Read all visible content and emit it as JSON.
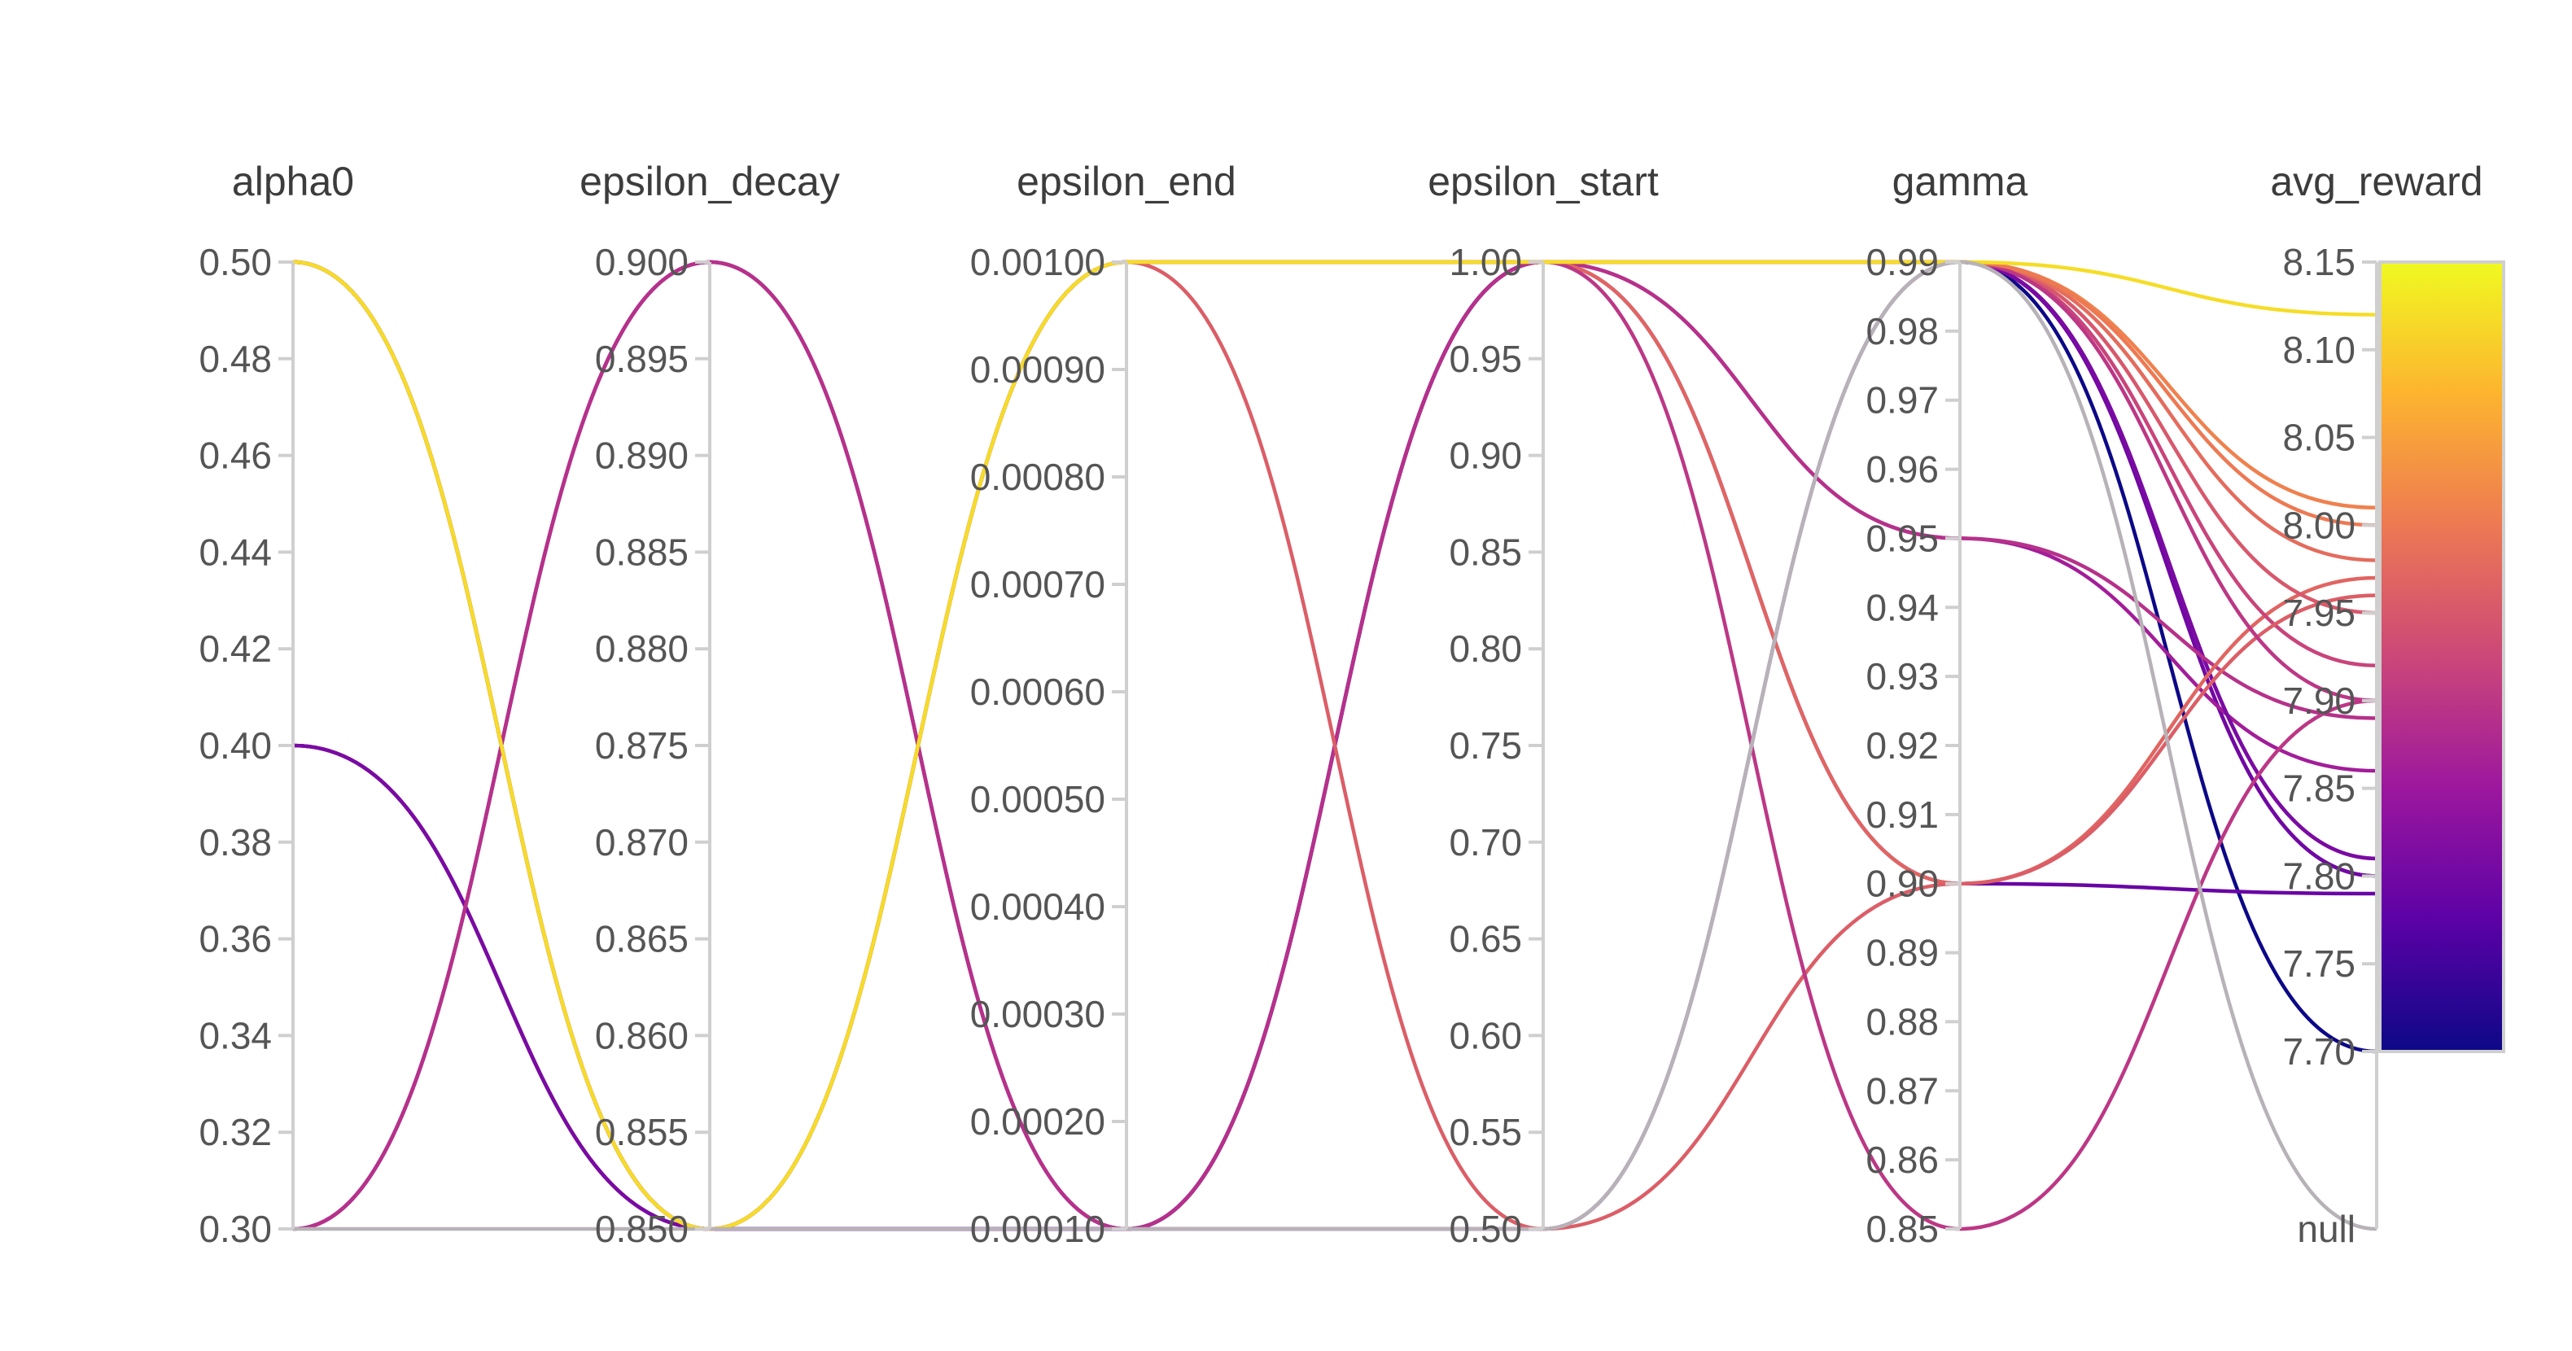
{
  "chart_data": {
    "type": "parallel_coordinates",
    "axes": [
      {
        "name": "alpha0",
        "min": 0.3,
        "max": 0.5,
        "ticks": [
          "0.30",
          "0.32",
          "0.34",
          "0.36",
          "0.38",
          "0.40",
          "0.42",
          "0.44",
          "0.46",
          "0.48",
          "0.50"
        ]
      },
      {
        "name": "epsilon_decay",
        "min": 0.85,
        "max": 0.9,
        "ticks": [
          "0.850",
          "0.855",
          "0.860",
          "0.865",
          "0.870",
          "0.875",
          "0.880",
          "0.885",
          "0.890",
          "0.895",
          "0.900"
        ]
      },
      {
        "name": "epsilon_end",
        "min": 0.0001,
        "max": 0.001,
        "ticks": [
          "0.00010",
          "0.00020",
          "0.00030",
          "0.00040",
          "0.00050",
          "0.00060",
          "0.00070",
          "0.00080",
          "0.00090",
          "0.00100"
        ]
      },
      {
        "name": "epsilon_start",
        "min": 0.5,
        "max": 1.0,
        "ticks": [
          "0.50",
          "0.55",
          "0.60",
          "0.65",
          "0.70",
          "0.75",
          "0.80",
          "0.85",
          "0.90",
          "0.95",
          "1.00"
        ]
      },
      {
        "name": "gamma",
        "min": 0.85,
        "max": 0.99,
        "ticks": [
          "0.85",
          "0.86",
          "0.87",
          "0.88",
          "0.89",
          "0.90",
          "0.91",
          "0.92",
          "0.93",
          "0.94",
          "0.95",
          "0.96",
          "0.97",
          "0.98",
          "0.99"
        ]
      },
      {
        "name": "avg_reward",
        "min": 7.7,
        "max": 8.15,
        "ticks": [
          "7.70",
          "7.75",
          "7.80",
          "7.85",
          "7.90",
          "7.95",
          "8.00",
          "8.05",
          "8.10",
          "8.15"
        ],
        "null_label": "null"
      }
    ],
    "colorbar": {
      "min": 7.7,
      "max": 8.15,
      "colors": [
        "#0d0887",
        "#5c01a6",
        "#9c179e",
        "#cc4778",
        "#ed7953",
        "#fdb42f",
        "#f0f921"
      ]
    },
    "series": [
      {
        "values": [
          0.5,
          0.85,
          0.0001,
          1.0,
          0.99,
          7.7
        ]
      },
      {
        "values": [
          0.5,
          0.85,
          0.0001,
          1.0,
          0.99,
          7.8
        ]
      },
      {
        "values": [
          0.4,
          0.85,
          0.0001,
          1.0,
          0.99,
          7.81
        ]
      },
      {
        "values": [
          0.3,
          0.9,
          0.0001,
          1.0,
          0.99,
          7.8
        ]
      },
      {
        "values": [
          0.3,
          0.9,
          0.0001,
          1.0,
          0.95,
          7.86
        ]
      },
      {
        "values": [
          0.4,
          0.85,
          0.0001,
          1.0,
          0.9,
          7.79
        ]
      },
      {
        "values": [
          0.4,
          0.85,
          0.0001,
          0.5,
          0.99,
          7.81
        ]
      },
      {
        "values": [
          0.3,
          0.9,
          0.0001,
          1.0,
          0.95,
          7.89
        ]
      },
      {
        "values": [
          0.5,
          0.85,
          0.001,
          1.0,
          0.9,
          7.97
        ]
      },
      {
        "values": [
          0.5,
          0.85,
          0.001,
          1.0,
          0.99,
          7.92
        ]
      },
      {
        "values": [
          0.5,
          0.85,
          0.001,
          1.0,
          0.99,
          7.95
        ]
      },
      {
        "values": [
          0.5,
          0.85,
          0.001,
          1.0,
          0.99,
          8.01
        ]
      },
      {
        "values": [
          0.5,
          0.85,
          0.001,
          1.0,
          0.99,
          7.98
        ]
      },
      {
        "values": [
          0.5,
          0.85,
          0.001,
          0.5,
          0.9,
          7.96
        ]
      },
      {
        "values": [
          0.5,
          0.85,
          0.001,
          1.0,
          0.85,
          7.9
        ]
      },
      {
        "values": [
          0.5,
          0.85,
          0.001,
          1.0,
          0.99,
          7.9
        ]
      },
      {
        "values": [
          0.5,
          0.85,
          0.001,
          1.0,
          0.99,
          8.0
        ]
      },
      {
        "values": [
          0.5,
          0.85,
          0.001,
          1.0,
          0.99,
          8.12
        ]
      },
      {
        "values": [
          0.3,
          0.85,
          0.0001,
          0.5,
          0.99,
          null
        ]
      }
    ]
  }
}
